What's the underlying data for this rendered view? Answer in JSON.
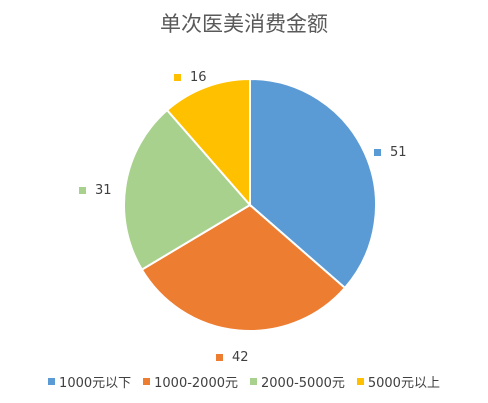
{
  "chart_data": {
    "type": "pie",
    "title": "单次医美消费金额",
    "categories": [
      "1000元以下",
      "1000-2000元",
      "2000-5000元",
      "5000元以上"
    ],
    "values": [
      51,
      42,
      31,
      16
    ],
    "colors": [
      "#5B9BD5",
      "#ED7D31",
      "#A9D18E",
      "#FFC000"
    ],
    "start_angle_deg": 0,
    "direction": "clockwise",
    "legend_position": "bottom",
    "data_labels": "outside-with-marker"
  }
}
